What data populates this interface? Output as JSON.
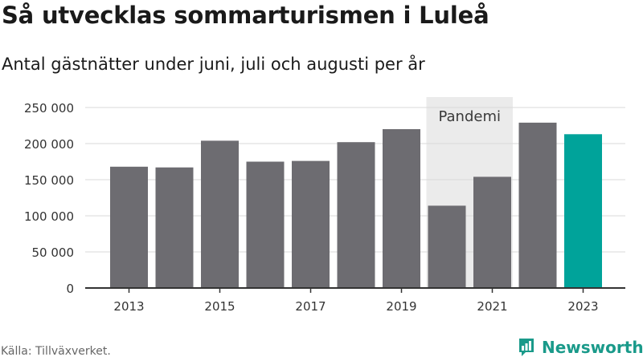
{
  "header": {
    "title": "Så utvecklas sommarturismen i Luleå",
    "subtitle": "Antal gästnätter under juni, juli och augusti per år"
  },
  "footer": {
    "source": "Källa: Tillväxverket.",
    "brand": "Newsworthy"
  },
  "colors": {
    "bar": "#6d6c71",
    "highlight": "#00a39a",
    "pandemic_band": "#ebebeb",
    "brand": "#1a9a8a"
  },
  "chart_data": {
    "type": "bar",
    "categories": [
      "2013",
      "2014",
      "2015",
      "2016",
      "2017",
      "2018",
      "2019",
      "2020",
      "2021",
      "2022",
      "2023"
    ],
    "values": [
      168000,
      167000,
      204000,
      175000,
      176000,
      202000,
      220000,
      114000,
      154000,
      229000,
      213000
    ],
    "highlight_category": "2023",
    "x_tick_labels": [
      "2013",
      "2015",
      "2017",
      "2019",
      "2021",
      "2023"
    ],
    "y_ticks": [
      0,
      50000,
      100000,
      150000,
      200000,
      250000
    ],
    "y_tick_labels": [
      "0",
      "50 000",
      "100 000",
      "150 000",
      "200 000",
      "250 000"
    ],
    "ylim": [
      0,
      250000
    ],
    "grid": true,
    "annotation": {
      "label": "Pandemi",
      "from": "2020",
      "to": "2021"
    }
  }
}
